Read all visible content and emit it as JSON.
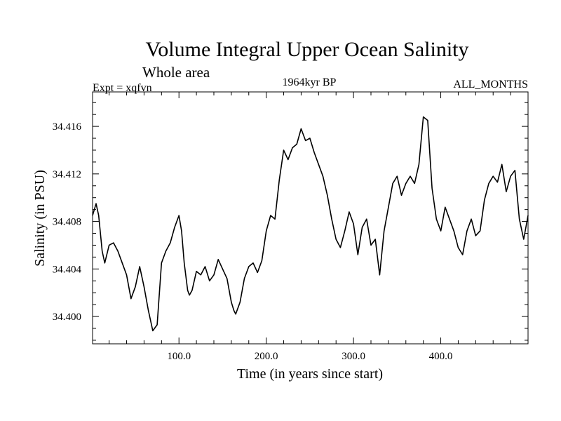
{
  "chart_data": {
    "type": "line",
    "title": "Volume Integral Upper Ocean Salinity",
    "subtitle": "Whole area",
    "annotations": {
      "left": "Expt = xqfvn",
      "center": "1964kyr BP",
      "right": "ALL_MONTHS"
    },
    "xlabel": "Time (in years since start)",
    "ylabel": "Salinity (in PSU)",
    "xlim": [
      1,
      500
    ],
    "ylim": [
      34.3977,
      34.4189
    ],
    "x_ticks": [
      100.0,
      200.0,
      300.0,
      400.0
    ],
    "x_tick_labels": [
      "100.0",
      "200.0",
      "300.0",
      "400.0"
    ],
    "y_ticks": [
      34.4,
      34.404,
      34.408,
      34.412,
      34.416
    ],
    "y_tick_labels": [
      "34.400",
      "34.404",
      "34.408",
      "34.412",
      "34.416"
    ],
    "grid": false,
    "series": [
      {
        "name": "Volume integral upper ocean salinity",
        "color": "#000000",
        "x": [
          1,
          5,
          8,
          12,
          15,
          20,
          25,
          30,
          35,
          40,
          45,
          50,
          55,
          60,
          65,
          70,
          75,
          80,
          85,
          90,
          95,
          100,
          103,
          106,
          110,
          112,
          115,
          120,
          125,
          130,
          135,
          140,
          145,
          150,
          155,
          160,
          163,
          165,
          170,
          175,
          180,
          185,
          190,
          195,
          200,
          205,
          210,
          215,
          220,
          225,
          230,
          235,
          240,
          245,
          250,
          255,
          260,
          265,
          270,
          275,
          280,
          285,
          290,
          295,
          300,
          305,
          310,
          315,
          320,
          325,
          330,
          335,
          340,
          345,
          350,
          355,
          360,
          365,
          370,
          375,
          380,
          385,
          390,
          395,
          400,
          405,
          410,
          415,
          420,
          425,
          430,
          435,
          440,
          445,
          450,
          455,
          460,
          465,
          470,
          475,
          480,
          485,
          490,
          495,
          500
        ],
        "values": [
          34.4085,
          34.4095,
          34.4085,
          34.4055,
          34.4045,
          34.406,
          34.4062,
          34.4055,
          34.4045,
          34.4035,
          34.4015,
          34.4025,
          34.4042,
          34.4025,
          34.4005,
          34.3988,
          34.3993,
          34.4045,
          34.4055,
          34.4062,
          34.4075,
          34.4085,
          34.4072,
          34.4045,
          34.4022,
          34.4018,
          34.4022,
          34.4038,
          34.4035,
          34.4042,
          34.403,
          34.4035,
          34.4048,
          34.404,
          34.4032,
          34.4012,
          34.4005,
          34.4002,
          34.4012,
          34.4032,
          34.4042,
          34.4045,
          34.4037,
          34.4047,
          34.4072,
          34.4085,
          34.4082,
          34.4115,
          34.414,
          34.4132,
          34.4142,
          34.4145,
          34.4158,
          34.4148,
          34.415,
          34.4138,
          34.4128,
          34.4118,
          34.4102,
          34.4082,
          34.4065,
          34.4058,
          34.4072,
          34.4088,
          34.4078,
          34.4052,
          34.4075,
          34.4082,
          34.406,
          34.4065,
          34.4035,
          34.4072,
          34.4092,
          34.4112,
          34.4118,
          34.4102,
          34.4112,
          34.4118,
          34.4112,
          34.4128,
          34.4168,
          34.4165,
          34.4108,
          34.4082,
          34.4072,
          34.4092,
          34.4082,
          34.4072,
          34.4058,
          34.4052,
          34.4072,
          34.4082,
          34.4068,
          34.4072,
          34.4098,
          34.4112,
          34.4118,
          34.4113,
          34.4128,
          34.4105,
          34.4118,
          34.4123,
          34.4082,
          34.4065,
          34.4085
        ]
      }
    ]
  }
}
